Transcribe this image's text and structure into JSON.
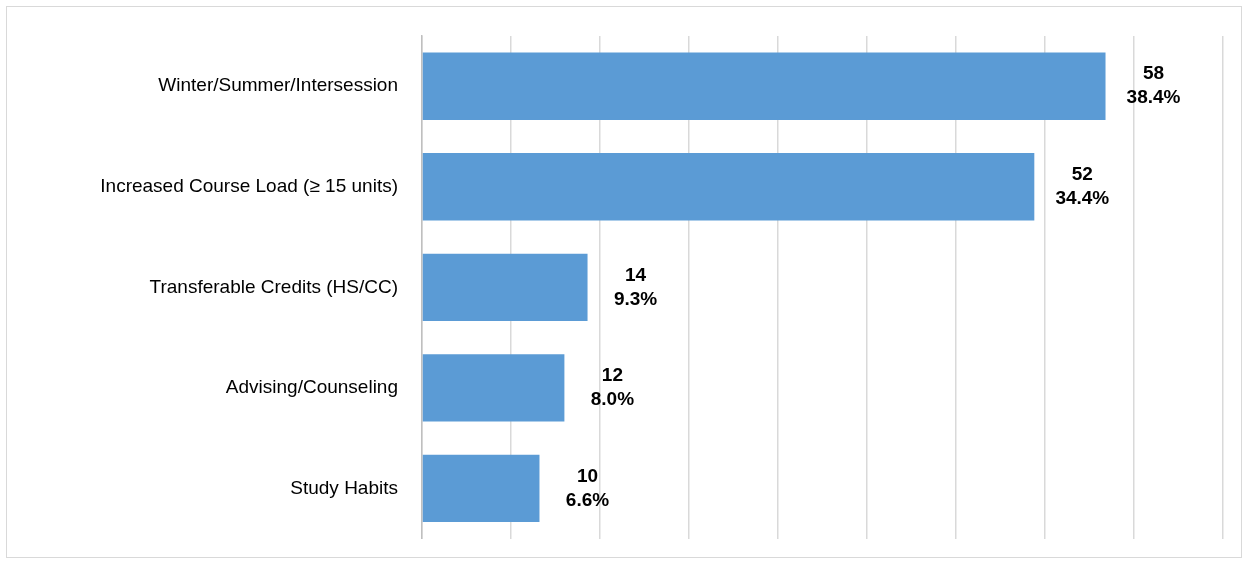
{
  "chart_data": {
    "type": "bar",
    "orientation": "horizontal",
    "categories": [
      "Winter/Summer/Intersession",
      "Increased Course Load (≥ 15 units)",
      "Transferable Credits (HS/CC)",
      "Advising/Counseling",
      "Study Habits"
    ],
    "values": [
      38.4,
      34.4,
      9.3,
      8.0,
      6.6
    ],
    "value_labels": [
      "58\n38.4%",
      "52\n34.4%",
      "14\n9.3%",
      "12\n8.0%",
      "10\n6.6%"
    ],
    "color": "#5b9bd5",
    "xlim": [
      0,
      45
    ],
    "xticks": [
      {
        "value": 0,
        "label": null
      },
      {
        "value": 5,
        "label": null
      },
      {
        "value": 10,
        "label": null
      },
      {
        "value": 15,
        "label": null
      },
      {
        "value": 20,
        "label": null
      },
      {
        "value": 25,
        "label": null
      },
      {
        "value": 30,
        "label": null
      },
      {
        "value": 35,
        "label": null
      },
      {
        "value": 40,
        "label": null
      },
      {
        "value": 45,
        "label": null
      }
    ],
    "tick_labels": "y",
    "grid": "x",
    "legend": false
  }
}
